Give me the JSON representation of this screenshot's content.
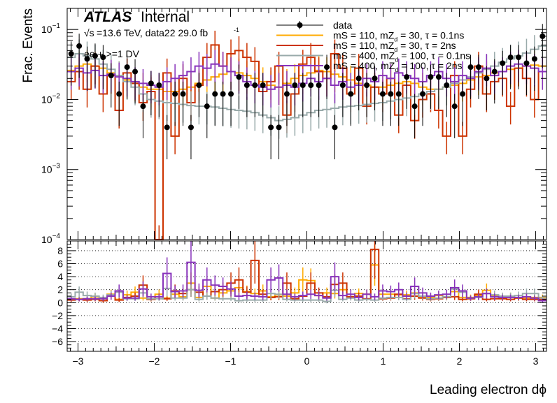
{
  "chart_data": {
    "type": "histogram",
    "title": "",
    "atlas_label": "ATLAS",
    "atlas_sublabel": "Internal",
    "energy_label": "=13.6 TeV, data22 29.0 fb",
    "energy_sqrt": "√s",
    "energy_sup": "-1",
    "selection_label": "ee + >=1 DV",
    "xlabel": "Leading electron dϕ",
    "ylabel": "Frac. Events",
    "xlim": [
      -3.1416,
      3.1416
    ],
    "top_ylim": [
      0.0001,
      0.2
    ],
    "top_yscale": "log",
    "top_yticks": [
      {
        "v": 0.0001,
        "base": "10",
        "exp": "−4"
      },
      {
        "v": 0.001,
        "base": "10",
        "exp": "−3"
      },
      {
        "v": 0.01,
        "base": "10",
        "exp": "−2"
      },
      {
        "v": 0.1,
        "base": "10",
        "exp": "−1"
      }
    ],
    "ratio_ylim": [
      -7.5,
      9.5
    ],
    "ratio_yticks": [
      "−6",
      "−4",
      "−2",
      "0",
      "2",
      "4",
      "6",
      "8"
    ],
    "ratio_yticks_values": [
      -6,
      -4,
      -2,
      0,
      2,
      4,
      6,
      8
    ],
    "xticks": [
      "−3",
      "−2",
      "−1",
      "0",
      "1",
      "2",
      "3"
    ],
    "xticks_values": [
      -3,
      -2,
      -1,
      0,
      1,
      2,
      3
    ],
    "nbins": 60,
    "legend_placement": "top-right",
    "legend": [
      {
        "name": "data",
        "color": "#000000",
        "marker": "dot"
      },
      {
        "name": "mS = 110, mZ",
        "sub": "d",
        "rest": " = 30, τ = 0.1ns",
        "color": "#ffaa00"
      },
      {
        "name": "mS = 110, mZ",
        "sub": "d",
        "rest": " = 30, τ = 2ns",
        "color": "#cc3300"
      },
      {
        "name": "mS = 400, mZ",
        "sub": "d",
        "rest": " = 100, τ = 0.1ns",
        "color": "#99aaaa"
      },
      {
        "name": "mS = 400, mZ",
        "sub": "d",
        "rest": " = 100, τ = 2ns",
        "color": "#8833bb"
      }
    ],
    "data": [
      0.045,
      0.058,
      0.038,
      0.042,
      0.04,
      0.022,
      0.012,
      0.029,
      0.025,
      0.008,
      0.017,
      0.016,
      0.004,
      0.012,
      0.012,
      0.004,
      0.016,
      0.008,
      0.012,
      0.012,
      0.012,
      0.021,
      0.016,
      0.016,
      0.016,
      0.004,
      0.004,
      0.012,
      0.016,
      0.016,
      0.016,
      0.016,
      0.029,
      0.004,
      0.016,
      0.012,
      0.02,
      0.016,
      0.02,
      0.012,
      0.012,
      0.012,
      0.021,
      0.008,
      0.012,
      0.021,
      0.021,
      0.016,
      0.008,
      0.012,
      0.029,
      0.029,
      0.02,
      0.025,
      0.033,
      0.04,
      0.04,
      0.033,
      0.038,
      0.08
    ],
    "series": [
      {
        "name": "mS = 110, mZd = 30, τ = 0.1ns",
        "color": "#ffaa00",
        "values": [
          0.026,
          0.03,
          0.032,
          0.03,
          0.028,
          0.024,
          0.022,
          0.019,
          0.017,
          0.015,
          0.014,
          0.014,
          0.013,
          0.013,
          0.014,
          0.015,
          0.017,
          0.019,
          0.021,
          0.023,
          0.025,
          0.024,
          0.022,
          0.02,
          0.018,
          0.016,
          0.015,
          0.017,
          0.02,
          0.022,
          0.024,
          0.026,
          0.025,
          0.023,
          0.021,
          0.019,
          0.017,
          0.016,
          0.015,
          0.015,
          0.016,
          0.017,
          0.018,
          0.017,
          0.015,
          0.014,
          0.014,
          0.015,
          0.016,
          0.017,
          0.019,
          0.021,
          0.022,
          0.024,
          0.025,
          0.027,
          0.028,
          0.03,
          0.031,
          0.03
        ]
      },
      {
        "name": "mS = 110, mZd = 30, τ = 2ns",
        "color": "#cc3300",
        "values": [
          0.018,
          0.025,
          0.014,
          0.03,
          0.012,
          0.022,
          0.007,
          0.024,
          0.017,
          0.009,
          0.013,
          0.0001,
          0.024,
          0.003,
          0.02,
          0.009,
          0.016,
          0.04,
          0.06,
          0.03,
          0.045,
          0.05,
          0.04,
          0.035,
          0.013,
          0.018,
          0.03,
          0.006,
          0.012,
          0.032,
          0.04,
          0.025,
          0.02,
          0.045,
          0.028,
          0.012,
          0.028,
          0.008,
          0.015,
          0.012,
          0.02,
          0.006,
          0.016,
          0.005,
          0.01,
          0.012,
          0.007,
          0.003,
          0.022,
          0.003,
          0.014,
          0.03,
          0.012,
          0.018,
          0.02,
          0.008,
          0.028,
          0.02,
          0.01,
          0.025
        ]
      },
      {
        "name": "mS = 400, mZd = 100, τ = 0.1ns",
        "color": "#99aaaa",
        "values": [
          0.04,
          0.045,
          0.042,
          0.038,
          0.032,
          0.027,
          0.022,
          0.018,
          0.015,
          0.012,
          0.01,
          0.0095,
          0.009,
          0.0088,
          0.0085,
          0.0082,
          0.008,
          0.008,
          0.0078,
          0.0075,
          0.0072,
          0.007,
          0.0068,
          0.0065,
          0.006,
          0.0055,
          0.005,
          0.0052,
          0.0055,
          0.006,
          0.0065,
          0.007,
          0.0072,
          0.0075,
          0.0078,
          0.008,
          0.0082,
          0.0085,
          0.0088,
          0.009,
          0.0095,
          0.01,
          0.0105,
          0.011,
          0.012,
          0.013,
          0.014,
          0.015,
          0.017,
          0.019,
          0.021,
          0.024,
          0.027,
          0.03,
          0.034,
          0.038,
          0.042,
          0.046,
          0.052,
          0.058
        ]
      },
      {
        "name": "mS = 400, mZd = 100, τ = 2ns",
        "color": "#8833bb",
        "values": [
          0.025,
          0.028,
          0.024,
          0.026,
          0.022,
          0.023,
          0.021,
          0.02,
          0.018,
          0.017,
          0.016,
          0.015,
          0.018,
          0.02,
          0.022,
          0.025,
          0.03,
          0.028,
          0.032,
          0.03,
          0.025,
          0.022,
          0.018,
          0.016,
          0.015,
          0.014,
          0.015,
          0.016,
          0.015,
          0.017,
          0.02,
          0.018,
          0.02,
          0.016,
          0.018,
          0.015,
          0.016,
          0.02,
          0.018,
          0.022,
          0.02,
          0.024,
          0.022,
          0.02,
          0.018,
          0.022,
          0.025,
          0.02,
          0.018,
          0.022,
          0.02,
          0.025,
          0.028,
          0.022,
          0.025,
          0.03,
          0.032,
          0.03,
          0.028,
          0.025
        ]
      }
    ],
    "ratio_series": [
      {
        "color": "#ffaa00",
        "values": [
          0.5,
          0.6,
          0.6,
          0.9,
          0.6,
          1.3,
          0.5,
          1.2,
          1.6,
          0.7,
          0.5,
          1.3,
          0.7,
          1.3,
          0.9,
          3.0,
          0.8,
          2.5,
          0.7,
          1.5,
          1.8,
          2.3,
          1.7,
          1.4,
          1.8,
          0.9,
          1.2,
          1.0,
          1.5,
          3.5,
          3.4,
          1.1,
          1.5,
          1.4,
          2.0,
          0.9,
          1.4,
          1.3,
          5.8,
          1.3,
          1.3,
          1.2,
          1.2,
          1.5,
          0.8,
          0.8,
          1.1,
          0.8,
          1.7,
          0.8,
          0.8,
          1.1,
          1.9,
          1.0,
          0.9,
          1.0,
          0.7,
          0.7,
          0.8,
          0.8
        ]
      },
      {
        "color": "#cc3300",
        "values": [
          0.4,
          0.5,
          0.4,
          0.5,
          0.3,
          1.0,
          0.4,
          0.8,
          1.0,
          2.7,
          0.5,
          0.9,
          0.6,
          1.8,
          1.4,
          2.0,
          1.6,
          1.0,
          1.7,
          2.0,
          3.0,
          3.5,
          1.6,
          6.5,
          1.3,
          0.8,
          0.9,
          3.0,
          0.6,
          1.0,
          3.0,
          1.5,
          0.9,
          2.8,
          3.0,
          0.9,
          1.0,
          0.6,
          8.2,
          0.6,
          0.7,
          1.3,
          0.6,
          1.0,
          0.7,
          0.5,
          0.6,
          0.8,
          0.9,
          0.5,
          0.6,
          1.3,
          0.5,
          0.6,
          0.6,
          0.5,
          0.7,
          0.5,
          0.5,
          0.5
        ]
      },
      {
        "color": "#99aaaa",
        "values": [
          0.9,
          1.6,
          1.1,
          1.0,
          0.8,
          1.2,
          1.6,
          0.6,
          0.6,
          1.5,
          0.6,
          0.6,
          2.2,
          0.7,
          0.7,
          2.0,
          0.5,
          1.0,
          0.7,
          0.6,
          0.6,
          0.3,
          0.4,
          0.4,
          0.4,
          1.4,
          1.3,
          0.5,
          0.4,
          0.4,
          0.4,
          0.4,
          0.2,
          1.9,
          0.5,
          0.7,
          0.4,
          0.5,
          0.4,
          0.7,
          0.8,
          0.8,
          0.5,
          1.4,
          1.0,
          0.6,
          0.7,
          0.9,
          2.1,
          1.6,
          0.7,
          0.8,
          1.4,
          1.2,
          1.0,
          1.0,
          1.1,
          1.4,
          1.4,
          0.7
        ]
      },
      {
        "color": "#8833bb",
        "values": [
          0.6,
          0.5,
          0.6,
          0.6,
          0.6,
          1.0,
          1.8,
          0.7,
          0.7,
          2.1,
          0.9,
          0.9,
          4.5,
          1.7,
          1.8,
          6.2,
          1.9,
          3.5,
          2.7,
          2.5,
          2.1,
          1.0,
          1.1,
          1.0,
          0.9,
          3.5,
          3.8,
          1.3,
          0.9,
          1.1,
          1.3,
          1.1,
          0.7,
          4.0,
          1.1,
          1.3,
          0.8,
          1.3,
          0.9,
          1.8,
          1.7,
          2.0,
          1.0,
          2.5,
          1.5,
          1.0,
          1.2,
          1.3,
          2.3,
          1.8,
          0.7,
          0.9,
          1.4,
          0.9,
          0.8,
          0.8,
          0.8,
          0.9,
          0.7,
          0.3
        ]
      }
    ]
  }
}
